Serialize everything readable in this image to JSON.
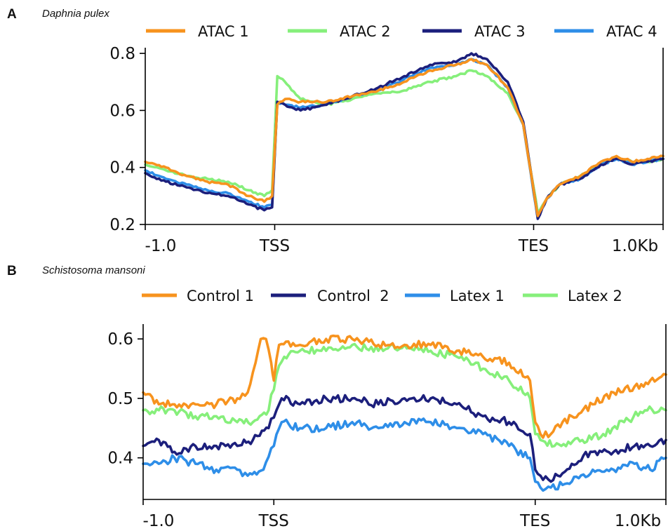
{
  "chart_data": [
    {
      "type": "line",
      "panel_label": "A",
      "title": "Daphnia pulex",
      "x_ticks": [
        "-1.0",
        "TSS",
        "TES",
        "1.0Kb"
      ],
      "x_tick_fracs": [
        0,
        0.25,
        0.75,
        1
      ],
      "ylim": [
        0.2,
        0.82
      ],
      "y_ticks": [
        0.2,
        0.4,
        0.6,
        0.8
      ],
      "y_tick_labels": [
        "0.2",
        "0.4",
        "0.6",
        "0.8"
      ],
      "grid": false,
      "legend_position": "top",
      "series": [
        {
          "name": "ATAC 1",
          "color": "#f7931e",
          "points": [
            [
              0,
              0.42
            ],
            [
              0.04,
              0.4
            ],
            [
              0.08,
              0.37
            ],
            [
              0.12,
              0.35
            ],
            [
              0.16,
              0.34
            ],
            [
              0.2,
              0.3
            ],
            [
              0.23,
              0.28
            ],
            [
              0.245,
              0.3
            ],
            [
              0.255,
              0.62
            ],
            [
              0.27,
              0.64
            ],
            [
              0.3,
              0.63
            ],
            [
              0.35,
              0.63
            ],
            [
              0.4,
              0.65
            ],
            [
              0.45,
              0.67
            ],
            [
              0.5,
              0.7
            ],
            [
              0.55,
              0.74
            ],
            [
              0.6,
              0.76
            ],
            [
              0.63,
              0.78
            ],
            [
              0.66,
              0.76
            ],
            [
              0.7,
              0.68
            ],
            [
              0.73,
              0.55
            ],
            [
              0.75,
              0.32
            ],
            [
              0.758,
              0.23
            ],
            [
              0.775,
              0.29
            ],
            [
              0.8,
              0.34
            ],
            [
              0.84,
              0.37
            ],
            [
              0.88,
              0.42
            ],
            [
              0.91,
              0.44
            ],
            [
              0.94,
              0.42
            ],
            [
              0.97,
              0.43
            ],
            [
              1,
              0.44
            ]
          ]
        },
        {
          "name": "ATAC 2",
          "color": "#86ef7b",
          "points": [
            [
              0,
              0.41
            ],
            [
              0.04,
              0.39
            ],
            [
              0.08,
              0.37
            ],
            [
              0.12,
              0.36
            ],
            [
              0.16,
              0.35
            ],
            [
              0.2,
              0.32
            ],
            [
              0.23,
              0.3
            ],
            [
              0.245,
              0.32
            ],
            [
              0.255,
              0.72
            ],
            [
              0.265,
              0.71
            ],
            [
              0.3,
              0.64
            ],
            [
              0.35,
              0.62
            ],
            [
              0.4,
              0.64
            ],
            [
              0.45,
              0.66
            ],
            [
              0.5,
              0.67
            ],
            [
              0.55,
              0.7
            ],
            [
              0.6,
              0.72
            ],
            [
              0.63,
              0.74
            ],
            [
              0.66,
              0.72
            ],
            [
              0.7,
              0.66
            ],
            [
              0.73,
              0.55
            ],
            [
              0.75,
              0.33
            ],
            [
              0.758,
              0.24
            ],
            [
              0.775,
              0.29
            ],
            [
              0.8,
              0.34
            ],
            [
              0.84,
              0.37
            ],
            [
              0.88,
              0.41
            ],
            [
              0.91,
              0.43
            ],
            [
              0.94,
              0.42
            ],
            [
              0.97,
              0.42
            ],
            [
              1,
              0.43
            ]
          ]
        },
        {
          "name": "ATAC 3",
          "color": "#1c1f7c",
          "points": [
            [
              0,
              0.38
            ],
            [
              0.04,
              0.35
            ],
            [
              0.08,
              0.33
            ],
            [
              0.12,
              0.31
            ],
            [
              0.16,
              0.3
            ],
            [
              0.2,
              0.27
            ],
            [
              0.23,
              0.25
            ],
            [
              0.245,
              0.26
            ],
            [
              0.255,
              0.63
            ],
            [
              0.27,
              0.62
            ],
            [
              0.3,
              0.6
            ],
            [
              0.35,
              0.62
            ],
            [
              0.4,
              0.65
            ],
            [
              0.45,
              0.68
            ],
            [
              0.5,
              0.72
            ],
            [
              0.55,
              0.76
            ],
            [
              0.6,
              0.77
            ],
            [
              0.63,
              0.8
            ],
            [
              0.66,
              0.78
            ],
            [
              0.7,
              0.7
            ],
            [
              0.73,
              0.56
            ],
            [
              0.75,
              0.32
            ],
            [
              0.758,
              0.22
            ],
            [
              0.775,
              0.29
            ],
            [
              0.8,
              0.34
            ],
            [
              0.84,
              0.36
            ],
            [
              0.88,
              0.41
            ],
            [
              0.91,
              0.43
            ],
            [
              0.94,
              0.41
            ],
            [
              0.97,
              0.42
            ],
            [
              1,
              0.43
            ]
          ]
        },
        {
          "name": "ATAC 4",
          "color": "#2e8ee8",
          "points": [
            [
              0,
              0.39
            ],
            [
              0.04,
              0.36
            ],
            [
              0.08,
              0.34
            ],
            [
              0.12,
              0.32
            ],
            [
              0.16,
              0.31
            ],
            [
              0.2,
              0.28
            ],
            [
              0.23,
              0.26
            ],
            [
              0.245,
              0.27
            ],
            [
              0.255,
              0.63
            ],
            [
              0.27,
              0.62
            ],
            [
              0.3,
              0.61
            ],
            [
              0.35,
              0.62
            ],
            [
              0.4,
              0.65
            ],
            [
              0.45,
              0.67
            ],
            [
              0.5,
              0.71
            ],
            [
              0.55,
              0.75
            ],
            [
              0.6,
              0.76
            ],
            [
              0.63,
              0.78
            ],
            [
              0.66,
              0.76
            ],
            [
              0.7,
              0.68
            ],
            [
              0.73,
              0.55
            ],
            [
              0.75,
              0.31
            ],
            [
              0.758,
              0.22
            ],
            [
              0.775,
              0.29
            ],
            [
              0.8,
              0.34
            ],
            [
              0.84,
              0.36
            ],
            [
              0.88,
              0.41
            ],
            [
              0.91,
              0.43
            ],
            [
              0.94,
              0.41
            ],
            [
              0.97,
              0.42
            ],
            [
              1,
              0.43
            ]
          ]
        }
      ]
    },
    {
      "type": "line",
      "panel_label": "B",
      "title": "Schistosoma mansoni",
      "x_ticks": [
        "-1.0",
        "TSS",
        "TES",
        "1.0Kb"
      ],
      "x_tick_fracs": [
        0,
        0.25,
        0.75,
        1
      ],
      "ylim": [
        0.33,
        0.625
      ],
      "y_ticks": [
        0.4,
        0.5,
        0.6
      ],
      "y_tick_labels": [
        "0.4",
        "0.5",
        "0.6"
      ],
      "grid": false,
      "legend_position": "top",
      "series": [
        {
          "name": "Control 1",
          "color": "#f7931e",
          "points": [
            [
              0,
              0.51
            ],
            [
              0.03,
              0.49
            ],
            [
              0.06,
              0.49
            ],
            [
              0.1,
              0.49
            ],
            [
              0.14,
              0.49
            ],
            [
              0.18,
              0.5
            ],
            [
              0.2,
              0.51
            ],
            [
              0.215,
              0.56
            ],
            [
              0.225,
              0.6
            ],
            [
              0.235,
              0.6
            ],
            [
              0.245,
              0.56
            ],
            [
              0.25,
              0.53
            ],
            [
              0.26,
              0.59
            ],
            [
              0.3,
              0.59
            ],
            [
              0.35,
              0.6
            ],
            [
              0.4,
              0.6
            ],
            [
              0.45,
              0.59
            ],
            [
              0.5,
              0.59
            ],
            [
              0.55,
              0.59
            ],
            [
              0.6,
              0.58
            ],
            [
              0.65,
              0.57
            ],
            [
              0.7,
              0.56
            ],
            [
              0.74,
              0.53
            ],
            [
              0.75,
              0.46
            ],
            [
              0.76,
              0.44
            ],
            [
              0.78,
              0.44
            ],
            [
              0.82,
              0.47
            ],
            [
              0.86,
              0.49
            ],
            [
              0.9,
              0.51
            ],
            [
              0.94,
              0.52
            ],
            [
              0.97,
              0.53
            ],
            [
              1,
              0.54
            ]
          ]
        },
        {
          "name": "Control  2",
          "color": "#1c1f7c",
          "points": [
            [
              0,
              0.42
            ],
            [
              0.03,
              0.43
            ],
            [
              0.06,
              0.41
            ],
            [
              0.1,
              0.42
            ],
            [
              0.14,
              0.42
            ],
            [
              0.18,
              0.42
            ],
            [
              0.21,
              0.43
            ],
            [
              0.24,
              0.45
            ],
            [
              0.255,
              0.48
            ],
            [
              0.265,
              0.5
            ],
            [
              0.3,
              0.49
            ],
            [
              0.35,
              0.5
            ],
            [
              0.4,
              0.5
            ],
            [
              0.45,
              0.49
            ],
            [
              0.5,
              0.5
            ],
            [
              0.55,
              0.5
            ],
            [
              0.6,
              0.49
            ],
            [
              0.65,
              0.47
            ],
            [
              0.7,
              0.46
            ],
            [
              0.74,
              0.44
            ],
            [
              0.75,
              0.38
            ],
            [
              0.76,
              0.37
            ],
            [
              0.78,
              0.36
            ],
            [
              0.82,
              0.39
            ],
            [
              0.86,
              0.41
            ],
            [
              0.9,
              0.41
            ],
            [
              0.94,
              0.42
            ],
            [
              0.97,
              0.42
            ],
            [
              1,
              0.43
            ]
          ]
        },
        {
          "name": "Latex 1",
          "color": "#2e8ee8",
          "points": [
            [
              0,
              0.39
            ],
            [
              0.03,
              0.39
            ],
            [
              0.06,
              0.4
            ],
            [
              0.1,
              0.39
            ],
            [
              0.14,
              0.38
            ],
            [
              0.18,
              0.38
            ],
            [
              0.2,
              0.37
            ],
            [
              0.23,
              0.38
            ],
            [
              0.25,
              0.42
            ],
            [
              0.265,
              0.46
            ],
            [
              0.3,
              0.45
            ],
            [
              0.35,
              0.45
            ],
            [
              0.4,
              0.46
            ],
            [
              0.45,
              0.45
            ],
            [
              0.5,
              0.46
            ],
            [
              0.55,
              0.46
            ],
            [
              0.6,
              0.45
            ],
            [
              0.65,
              0.44
            ],
            [
              0.7,
              0.42
            ],
            [
              0.74,
              0.4
            ],
            [
              0.75,
              0.36
            ],
            [
              0.76,
              0.35
            ],
            [
              0.78,
              0.35
            ],
            [
              0.82,
              0.36
            ],
            [
              0.86,
              0.38
            ],
            [
              0.9,
              0.38
            ],
            [
              0.94,
              0.39
            ],
            [
              0.97,
              0.38
            ],
            [
              1,
              0.4
            ]
          ]
        },
        {
          "name": "Latex 2",
          "color": "#86ef7b",
          "points": [
            [
              0,
              0.48
            ],
            [
              0.03,
              0.48
            ],
            [
              0.06,
              0.48
            ],
            [
              0.1,
              0.47
            ],
            [
              0.14,
              0.47
            ],
            [
              0.18,
              0.46
            ],
            [
              0.21,
              0.46
            ],
            [
              0.24,
              0.48
            ],
            [
              0.255,
              0.54
            ],
            [
              0.27,
              0.57
            ],
            [
              0.3,
              0.58
            ],
            [
              0.35,
              0.58
            ],
            [
              0.4,
              0.59
            ],
            [
              0.45,
              0.58
            ],
            [
              0.5,
              0.59
            ],
            [
              0.55,
              0.58
            ],
            [
              0.6,
              0.57
            ],
            [
              0.65,
              0.55
            ],
            [
              0.7,
              0.53
            ],
            [
              0.74,
              0.5
            ],
            [
              0.75,
              0.44
            ],
            [
              0.76,
              0.43
            ],
            [
              0.8,
              0.42
            ],
            [
              0.84,
              0.43
            ],
            [
              0.88,
              0.44
            ],
            [
              0.92,
              0.46
            ],
            [
              0.96,
              0.48
            ],
            [
              1,
              0.48
            ]
          ]
        }
      ]
    }
  ]
}
